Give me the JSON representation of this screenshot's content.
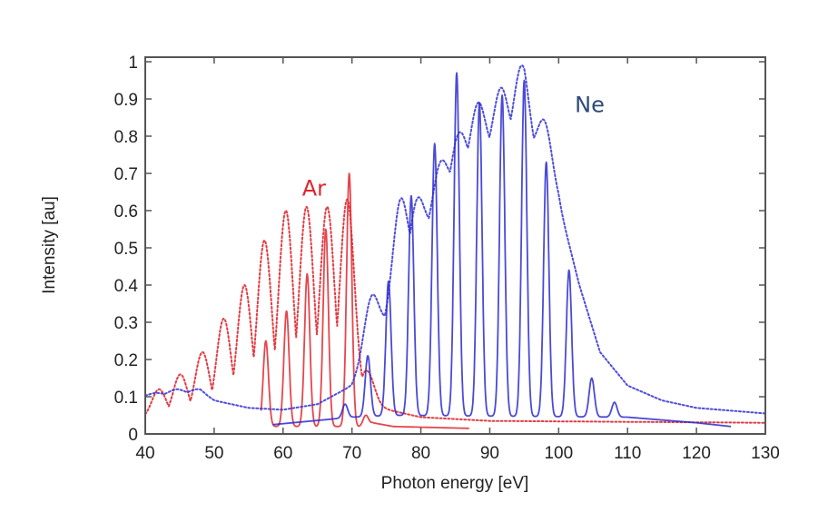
{
  "chart_data": {
    "type": "line",
    "title": "",
    "xlabel": "Photon energy [eV]",
    "ylabel": "Intensity [au]",
    "xlim": [
      40,
      130
    ],
    "ylim": [
      0,
      1
    ],
    "xticks": [
      40,
      50,
      60,
      70,
      80,
      90,
      100,
      110,
      120,
      130
    ],
    "yticks": [
      0,
      0.1,
      0.2,
      0.3,
      0.4,
      0.5,
      0.6,
      0.7,
      0.8,
      0.9,
      1
    ],
    "ytick_labels": [
      "0",
      "0.1",
      "0.2",
      "0.3",
      "0.4",
      "0.5",
      "0.6",
      "0.7",
      "0.8",
      "0.9",
      "1"
    ],
    "grid": false,
    "legend": "none",
    "annotations": [
      {
        "text": "Ar",
        "x": 64.5,
        "y": 0.64,
        "color": "#e0262d"
      },
      {
        "text": "Ne",
        "x": 104.5,
        "y": 0.865,
        "color": "#2e4a78"
      }
    ],
    "series": [
      {
        "name": "Ar (dotted)",
        "style": "dotted",
        "color": "#e0262d",
        "x_range": [
          40,
          130
        ],
        "baseline": [
          [
            40,
            0.04
          ],
          [
            56,
            0.05
          ],
          [
            72,
            0.09
          ],
          [
            74,
            0.07
          ],
          [
            80,
            0.045
          ],
          [
            90,
            0.035
          ],
          [
            130,
            0.03
          ]
        ],
        "peaks": [
          {
            "x": 42.0,
            "y": 0.12
          },
          {
            "x": 45.1,
            "y": 0.16
          },
          {
            "x": 48.3,
            "y": 0.22
          },
          {
            "x": 51.4,
            "y": 0.31
          },
          {
            "x": 54.4,
            "y": 0.4
          },
          {
            "x": 57.3,
            "y": 0.52
          },
          {
            "x": 60.4,
            "y": 0.6
          },
          {
            "x": 63.4,
            "y": 0.61
          },
          {
            "x": 66.4,
            "y": 0.61
          },
          {
            "x": 69.3,
            "y": 0.63
          },
          {
            "x": 72.2,
            "y": 0.17
          }
        ]
      },
      {
        "name": "Ar (solid)",
        "style": "solid",
        "color": "#e0262d",
        "x_range": [
          56.8,
          87
        ],
        "baseline": [
          [
            56.8,
            0.02
          ],
          [
            72,
            0.02
          ],
          [
            73,
            0.03
          ],
          [
            76,
            0.02
          ],
          [
            87,
            0.015
          ]
        ],
        "peaks": [
          {
            "x": 57.5,
            "y": 0.25
          },
          {
            "x": 60.5,
            "y": 0.33
          },
          {
            "x": 63.5,
            "y": 0.43
          },
          {
            "x": 66.2,
            "y": 0.55
          },
          {
            "x": 69.6,
            "y": 0.7
          },
          {
            "x": 72.0,
            "y": 0.05
          }
        ]
      },
      {
        "name": "Ne (dotted)",
        "style": "dotted",
        "color": "#3a3ad8",
        "x_range": [
          40,
          130
        ],
        "baseline": [
          [
            40,
            0.1
          ],
          [
            48,
            0.11
          ],
          [
            50,
            0.09
          ],
          [
            55,
            0.07
          ],
          [
            60,
            0.065
          ],
          [
            65,
            0.08
          ],
          [
            70,
            0.13
          ],
          [
            75,
            0.3
          ],
          [
            80,
            0.5
          ],
          [
            85,
            0.68
          ],
          [
            90,
            0.75
          ],
          [
            95,
            0.8
          ],
          [
            100,
            0.62
          ],
          [
            103,
            0.4
          ],
          [
            106,
            0.22
          ],
          [
            110,
            0.13
          ],
          [
            115,
            0.09
          ],
          [
            120,
            0.07
          ],
          [
            130,
            0.055
          ]
        ],
        "peaks": [
          {
            "x": 41.5,
            "y": 0.11
          },
          {
            "x": 44.5,
            "y": 0.12
          },
          {
            "x": 47.5,
            "y": 0.12
          },
          {
            "x": 72.8,
            "y": 0.37
          },
          {
            "x": 77.0,
            "y": 0.63
          },
          {
            "x": 79.4,
            "y": 0.63
          },
          {
            "x": 82.8,
            "y": 0.73
          },
          {
            "x": 85.6,
            "y": 0.81
          },
          {
            "x": 88.3,
            "y": 0.89
          },
          {
            "x": 91.6,
            "y": 0.93
          },
          {
            "x": 94.6,
            "y": 0.99
          },
          {
            "x": 98.0,
            "y": 0.84
          },
          {
            "x": 101.0,
            "y": 0.52
          },
          {
            "x": 104.5,
            "y": 0.31
          },
          {
            "x": 107.5,
            "y": 0.17
          }
        ]
      },
      {
        "name": "Ne (solid)",
        "style": "solid",
        "color": "#2a2ad0",
        "x_range": [
          58.5,
          125
        ],
        "baseline": [
          [
            58.5,
            0.025
          ],
          [
            70,
            0.045
          ],
          [
            76,
            0.05
          ],
          [
            110,
            0.045
          ],
          [
            120,
            0.03
          ],
          [
            125,
            0.02
          ]
        ],
        "peaks": [
          {
            "x": 69.0,
            "y": 0.08
          },
          {
            "x": 72.3,
            "y": 0.21
          },
          {
            "x": 75.3,
            "y": 0.41
          },
          {
            "x": 78.6,
            "y": 0.64
          },
          {
            "x": 82.0,
            "y": 0.78
          },
          {
            "x": 85.2,
            "y": 0.97
          },
          {
            "x": 88.5,
            "y": 0.89
          },
          {
            "x": 91.8,
            "y": 0.91
          },
          {
            "x": 95.0,
            "y": 0.95
          },
          {
            "x": 98.2,
            "y": 0.73
          },
          {
            "x": 101.5,
            "y": 0.44
          },
          {
            "x": 104.8,
            "y": 0.15
          },
          {
            "x": 108.1,
            "y": 0.085
          }
        ]
      }
    ]
  }
}
